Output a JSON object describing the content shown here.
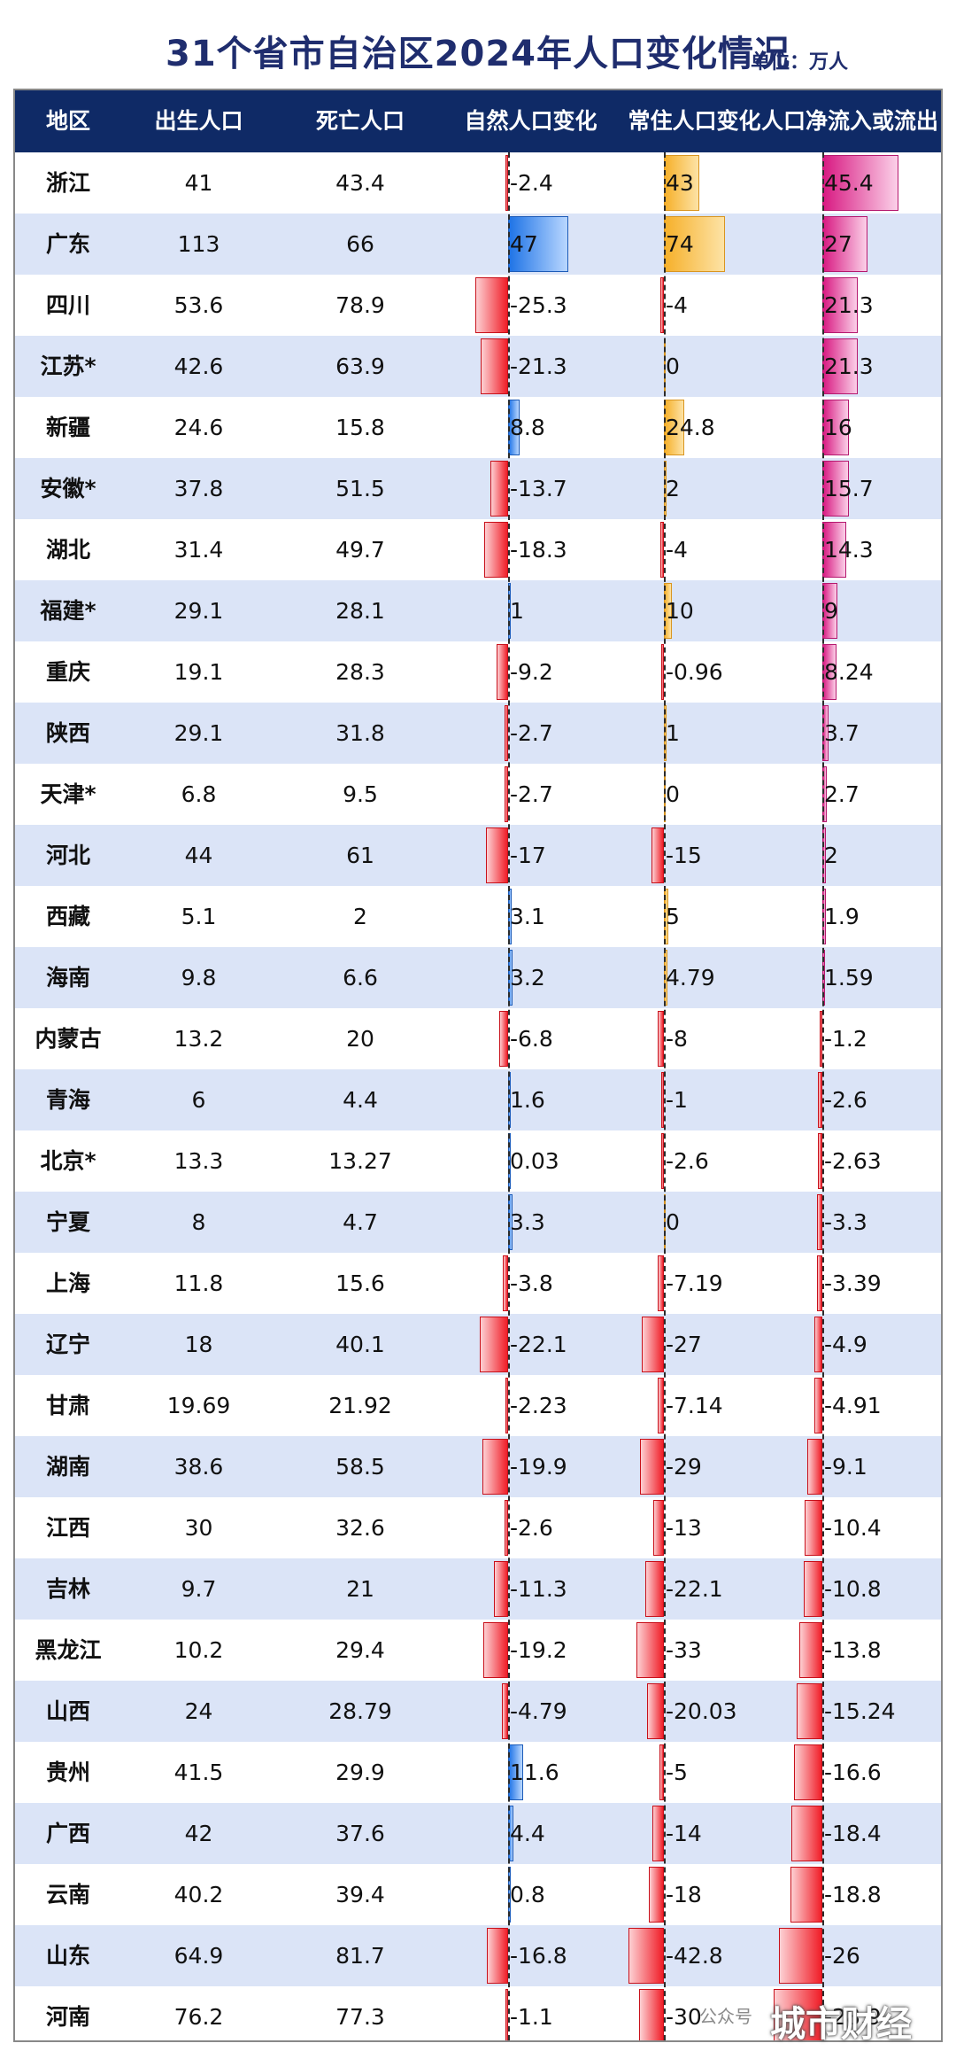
{
  "title": "31个省市自治区2024年人口变化情况",
  "unit": "单位：万人",
  "headers": [
    "地区",
    "出生人口",
    "死亡人口",
    "自然人口变化",
    "常住人口变化",
    "人口净流入或流出"
  ],
  "watermark": {
    "prefix": "公众号",
    "text": "城市财经"
  },
  "colors": {
    "header_bg": "#0f2a66",
    "row_alt_bg": "#dbe4f7",
    "positive_natural": "#1e73e6",
    "positive_resident": "#f6b02a",
    "positive_migration": "#d81a82",
    "negative": "#f01e28"
  },
  "chart_data": {
    "type": "table",
    "columns": [
      "地区",
      "出生人口",
      "死亡人口",
      "自然人口变化",
      "常住人口变化",
      "人口净流入或流出"
    ],
    "bar_columns": [
      "自然人口变化",
      "常住人口变化",
      "人口净流入或流出"
    ],
    "rows": [
      {
        "region": "浙江",
        "births": "41",
        "deaths": "43.4",
        "natural": "-2.4",
        "resident": "43",
        "migration": "45.4"
      },
      {
        "region": "广东",
        "births": "113",
        "deaths": "66",
        "natural": "47",
        "resident": "74",
        "migration": "27"
      },
      {
        "region": "四川",
        "births": "53.6",
        "deaths": "78.9",
        "natural": "-25.3",
        "resident": "-4",
        "migration": "21.3"
      },
      {
        "region": "江苏*",
        "births": "42.6",
        "deaths": "63.9",
        "natural": "-21.3",
        "resident": "0",
        "migration": "21.3"
      },
      {
        "region": "新疆",
        "births": "24.6",
        "deaths": "15.8",
        "natural": "8.8",
        "resident": "24.8",
        "migration": "16"
      },
      {
        "region": "安徽*",
        "births": "37.8",
        "deaths": "51.5",
        "natural": "-13.7",
        "resident": "2",
        "migration": "15.7"
      },
      {
        "region": "湖北",
        "births": "31.4",
        "deaths": "49.7",
        "natural": "-18.3",
        "resident": "-4",
        "migration": "14.3"
      },
      {
        "region": "福建*",
        "births": "29.1",
        "deaths": "28.1",
        "natural": "1",
        "resident": "10",
        "migration": "9"
      },
      {
        "region": "重庆",
        "births": "19.1",
        "deaths": "28.3",
        "natural": "-9.2",
        "resident": "-0.96",
        "migration": "8.24"
      },
      {
        "region": "陕西",
        "births": "29.1",
        "deaths": "31.8",
        "natural": "-2.7",
        "resident": "1",
        "migration": "3.7"
      },
      {
        "region": "天津*",
        "births": "6.8",
        "deaths": "9.5",
        "natural": "-2.7",
        "resident": "0",
        "migration": "2.7"
      },
      {
        "region": "河北",
        "births": "44",
        "deaths": "61",
        "natural": "-17",
        "resident": "-15",
        "migration": "2"
      },
      {
        "region": "西藏",
        "births": "5.1",
        "deaths": "2",
        "natural": "3.1",
        "resident": "5",
        "migration": "1.9"
      },
      {
        "region": "海南",
        "births": "9.8",
        "deaths": "6.6",
        "natural": "3.2",
        "resident": "4.79",
        "migration": "1.59"
      },
      {
        "region": "内蒙古",
        "births": "13.2",
        "deaths": "20",
        "natural": "-6.8",
        "resident": "-8",
        "migration": "-1.2"
      },
      {
        "region": "青海",
        "births": "6",
        "deaths": "4.4",
        "natural": "1.6",
        "resident": "-1",
        "migration": "-2.6"
      },
      {
        "region": "北京*",
        "births": "13.3",
        "deaths": "13.27",
        "natural": "0.03",
        "resident": "-2.6",
        "migration": "-2.63"
      },
      {
        "region": "宁夏",
        "births": "8",
        "deaths": "4.7",
        "natural": "3.3",
        "resident": "0",
        "migration": "-3.3"
      },
      {
        "region": "上海",
        "births": "11.8",
        "deaths": "15.6",
        "natural": "-3.8",
        "resident": "-7.19",
        "migration": "-3.39"
      },
      {
        "region": "辽宁",
        "births": "18",
        "deaths": "40.1",
        "natural": "-22.1",
        "resident": "-27",
        "migration": "-4.9"
      },
      {
        "region": "甘肃",
        "births": "19.69",
        "deaths": "21.92",
        "natural": "-2.23",
        "resident": "-7.14",
        "migration": "-4.91"
      },
      {
        "region": "湖南",
        "births": "38.6",
        "deaths": "58.5",
        "natural": "-19.9",
        "resident": "-29",
        "migration": "-9.1"
      },
      {
        "region": "江西",
        "births": "30",
        "deaths": "32.6",
        "natural": "-2.6",
        "resident": "-13",
        "migration": "-10.4"
      },
      {
        "region": "吉林",
        "births": "9.7",
        "deaths": "21",
        "natural": "-11.3",
        "resident": "-22.1",
        "migration": "-10.8"
      },
      {
        "region": "黑龙江",
        "births": "10.2",
        "deaths": "29.4",
        "natural": "-19.2",
        "resident": "-33",
        "migration": "-13.8"
      },
      {
        "region": "山西",
        "births": "24",
        "deaths": "28.79",
        "natural": "-4.79",
        "resident": "-20.03",
        "migration": "-15.24"
      },
      {
        "region": "贵州",
        "births": "41.5",
        "deaths": "29.9",
        "natural": "11.6",
        "resident": "-5",
        "migration": "-16.6"
      },
      {
        "region": "广西",
        "births": "42",
        "deaths": "37.6",
        "natural": "4.4",
        "resident": "-14",
        "migration": "-18.4"
      },
      {
        "region": "云南",
        "births": "40.2",
        "deaths": "39.4",
        "natural": "0.8",
        "resident": "-18",
        "migration": "-18.8"
      },
      {
        "region": "山东",
        "births": "64.9",
        "deaths": "81.7",
        "natural": "-16.8",
        "resident": "-42.8",
        "migration": "-26"
      },
      {
        "region": "河南",
        "births": "76.2",
        "deaths": "77.3",
        "natural": "-1.1",
        "resident": "-30",
        "migration": "-28.9"
      }
    ]
  }
}
